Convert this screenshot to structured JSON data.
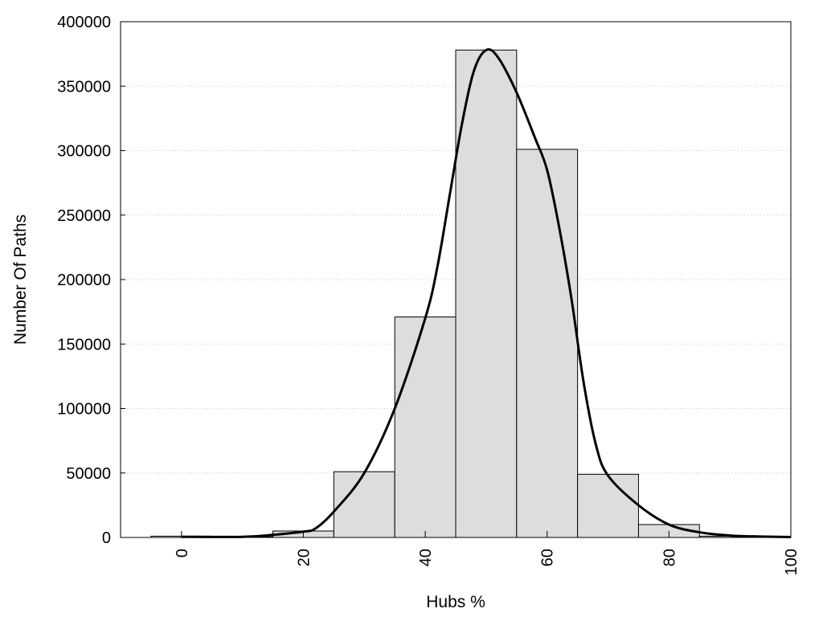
{
  "chart_data": {
    "type": "bar",
    "title": "",
    "xlabel": "Hubs %",
    "ylabel": "Number Of Paths",
    "xlim": [
      -10,
      100
    ],
    "ylim": [
      0,
      400000
    ],
    "x_ticks": [
      "0",
      "20",
      "40",
      "60",
      "80",
      "100"
    ],
    "y_ticks": [
      "0",
      "50000",
      "100000",
      "150000",
      "200000",
      "250000",
      "300000",
      "350000",
      "400000"
    ],
    "grid": "horizontal dotted",
    "legend": "none",
    "bars": [
      {
        "x0": -5,
        "x1": 5,
        "value": 1000
      },
      {
        "x0": 5,
        "x1": 15,
        "value": 500
      },
      {
        "x0": 15,
        "x1": 25,
        "value": 5000
      },
      {
        "x0": 25,
        "x1": 35,
        "value": 51000
      },
      {
        "x0": 35,
        "x1": 45,
        "value": 171000
      },
      {
        "x0": 45,
        "x1": 55,
        "value": 378000
      },
      {
        "x0": 55,
        "x1": 65,
        "value": 301000
      },
      {
        "x0": 65,
        "x1": 75,
        "value": 49000
      },
      {
        "x0": 75,
        "x1": 85,
        "value": 10000
      },
      {
        "x0": 85,
        "x1": 95,
        "value": 1000
      },
      {
        "x0": 95,
        "x1": 105,
        "value": 200
      }
    ],
    "curve": {
      "x": [
        0,
        10,
        15,
        20,
        22,
        25,
        30,
        35,
        40,
        42,
        44,
        46,
        48,
        50,
        52,
        55,
        58,
        60,
        62,
        64,
        66,
        68,
        70,
        75,
        80,
        85,
        90,
        95,
        100
      ],
      "y": [
        500,
        500,
        2000,
        4500,
        7000,
        20000,
        50000,
        100000,
        170000,
        210000,
        265000,
        320000,
        362000,
        378000,
        372000,
        345000,
        310000,
        285000,
        240000,
        185000,
        120000,
        72000,
        48000,
        25000,
        10000,
        4000,
        1500,
        700,
        300
      ]
    },
    "colors": {
      "bar_fill": "#dddddd",
      "bar_stroke": "#000000",
      "curve": "#000000",
      "grid": "#c8c8c8"
    }
  }
}
